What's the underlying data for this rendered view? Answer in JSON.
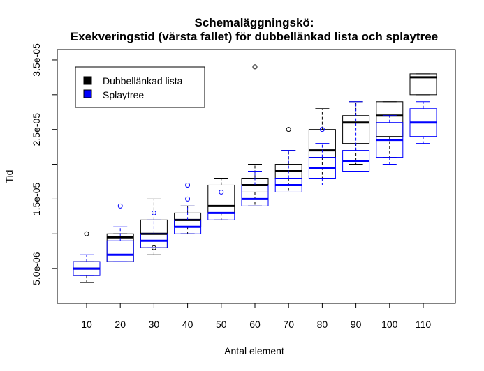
{
  "chart_data": {
    "type": "box",
    "title_line1": "Schemaläggningskö:",
    "title_line2": "Exekveringstid (värsta fallet) för dubbellänkad lista och splaytree",
    "xlabel": "Antal element",
    "ylabel": "Tid",
    "ylim": [
      0.0,
      3.65e-05
    ],
    "grid": false,
    "legend_position": "top-left",
    "categories": [
      "10",
      "20",
      "30",
      "40",
      "50",
      "60",
      "70",
      "80",
      "90",
      "100",
      "110"
    ],
    "y_ticks": [
      {
        "value": 5e-06,
        "label": "5.0e-06"
      },
      {
        "value": 1.5e-05,
        "label": "1.5e-05"
      },
      {
        "value": 2.5e-05,
        "label": "2.5e-05"
      },
      {
        "value": 3.5e-05,
        "label": "3.5e-05"
      }
    ],
    "y_minor_ticks": [
      1e-05,
      2e-05,
      3e-05
    ],
    "series": [
      {
        "name": "Dubbellänkad lista",
        "color": "#000000",
        "boxes": [
          {
            "category": "10",
            "min": 3e-06,
            "q1": 4e-06,
            "median": 5e-06,
            "q3": 6e-06,
            "max": 6e-06,
            "outliers": [
              1e-05
            ]
          },
          {
            "category": "20",
            "min": 6e-06,
            "q1": 6e-06,
            "median": 9.5e-06,
            "q3": 1e-05,
            "max": 1e-05,
            "outliers": []
          },
          {
            "category": "30",
            "min": 7e-06,
            "q1": 8e-06,
            "median": 1e-05,
            "q3": 1.2e-05,
            "max": 1.5e-05,
            "outliers": [
              8e-06
            ]
          },
          {
            "category": "40",
            "min": 1e-05,
            "q1": 1.1e-05,
            "median": 1.2e-05,
            "q3": 1.3e-05,
            "max": 1.4e-05,
            "outliers": []
          },
          {
            "category": "50",
            "min": 1.2e-05,
            "q1": 1.3e-05,
            "median": 1.4e-05,
            "q3": 1.7e-05,
            "max": 1.8e-05,
            "outliers": []
          },
          {
            "category": "60",
            "min": 1.4e-05,
            "q1": 1.6e-05,
            "median": 1.7e-05,
            "q3": 1.8e-05,
            "max": 2e-05,
            "outliers": [
              3.4e-05
            ]
          },
          {
            "category": "70",
            "min": 1.6e-05,
            "q1": 1.8e-05,
            "median": 1.9e-05,
            "q3": 2e-05,
            "max": 2.2e-05,
            "outliers": [
              2.5e-05
            ]
          },
          {
            "category": "80",
            "min": 1.8e-05,
            "q1": 2.1e-05,
            "median": 2.2e-05,
            "q3": 2.5e-05,
            "max": 2.8e-05,
            "outliers": []
          },
          {
            "category": "90",
            "min": 2e-05,
            "q1": 2.3e-05,
            "median": 2.6e-05,
            "q3": 2.7e-05,
            "max": 2.9e-05,
            "outliers": []
          },
          {
            "category": "100",
            "min": 2.1e-05,
            "q1": 2.4e-05,
            "median": 2.7e-05,
            "q3": 2.9e-05,
            "max": 2.9e-05,
            "outliers": []
          },
          {
            "category": "110",
            "min": 3e-05,
            "q1": 3e-05,
            "median": 3.25e-05,
            "q3": 3.3e-05,
            "max": 3.3e-05,
            "outliers": []
          }
        ]
      },
      {
        "name": "Splaytree",
        "color": "#0000ff",
        "boxes": [
          {
            "category": "10",
            "min": 4e-06,
            "q1": 4e-06,
            "median": 5e-06,
            "q3": 6e-06,
            "max": 7e-06,
            "outliers": []
          },
          {
            "category": "20",
            "min": 6e-06,
            "q1": 6e-06,
            "median": 7e-06,
            "q3": 9e-06,
            "max": 1.1e-05,
            "outliers": [
              1.4e-05
            ]
          },
          {
            "category": "30",
            "min": 8e-06,
            "q1": 8e-06,
            "median": 9e-06,
            "q3": 1e-05,
            "max": 1.2e-05,
            "outliers": [
              1.3e-05
            ]
          },
          {
            "category": "40",
            "min": 1e-05,
            "q1": 1e-05,
            "median": 1.1e-05,
            "q3": 1.2e-05,
            "max": 1.4e-05,
            "outliers": [
              1.5e-05,
              1.7e-05
            ]
          },
          {
            "category": "50",
            "min": 1.2e-05,
            "q1": 1.2e-05,
            "median": 1.3e-05,
            "q3": 1.3e-05,
            "max": 1.3e-05,
            "outliers": [
              1.6e-05
            ]
          },
          {
            "category": "60",
            "min": 1.4e-05,
            "q1": 1.4e-05,
            "median": 1.5e-05,
            "q3": 1.7e-05,
            "max": 1.9e-05,
            "outliers": []
          },
          {
            "category": "70",
            "min": 1.6e-05,
            "q1": 1.6e-05,
            "median": 1.7e-05,
            "q3": 1.8e-05,
            "max": 2.2e-05,
            "outliers": []
          },
          {
            "category": "80",
            "min": 1.7e-05,
            "q1": 1.8e-05,
            "median": 1.95e-05,
            "q3": 2.1e-05,
            "max": 2.3e-05,
            "outliers": [
              2.5e-05
            ]
          },
          {
            "category": "90",
            "min": 1.9e-05,
            "q1": 1.9e-05,
            "median": 2.05e-05,
            "q3": 2.2e-05,
            "max": 2.9e-05,
            "outliers": []
          },
          {
            "category": "100",
            "min": 2e-05,
            "q1": 2.1e-05,
            "median": 2.35e-05,
            "q3": 2.6e-05,
            "max": 2.7e-05,
            "outliers": []
          },
          {
            "category": "110",
            "min": 2.3e-05,
            "q1": 2.4e-05,
            "median": 2.6e-05,
            "q3": 2.8e-05,
            "max": 2.9e-05,
            "outliers": []
          }
        ]
      }
    ],
    "legend": [
      {
        "label": "Dubbellänkad lista",
        "color": "#000000"
      },
      {
        "label": "Splaytree",
        "color": "#0000ff"
      }
    ]
  }
}
